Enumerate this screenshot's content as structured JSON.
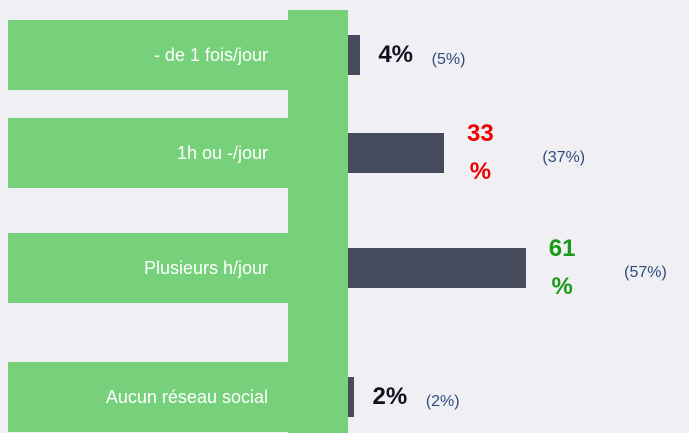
{
  "chart_data": {
    "type": "bar",
    "orientation": "horizontal",
    "categories": [
      "- de 1 fois/jour",
      "1h ou -/jour",
      "Plusieurs h/jour",
      "Aucun réseau social"
    ],
    "values": [
      4,
      33,
      61,
      2
    ],
    "value_labels": [
      "4%",
      "33 %",
      "61 %",
      "2%"
    ],
    "value_label_colors": [
      "#111122",
      "#ee0000",
      "#1a9a1a",
      "#111122"
    ],
    "comparison_labels": [
      "(5%)",
      "(37%)",
      "(57%)",
      "(2%)"
    ],
    "color": "#474b5e",
    "xlim": [
      0,
      100
    ]
  }
}
